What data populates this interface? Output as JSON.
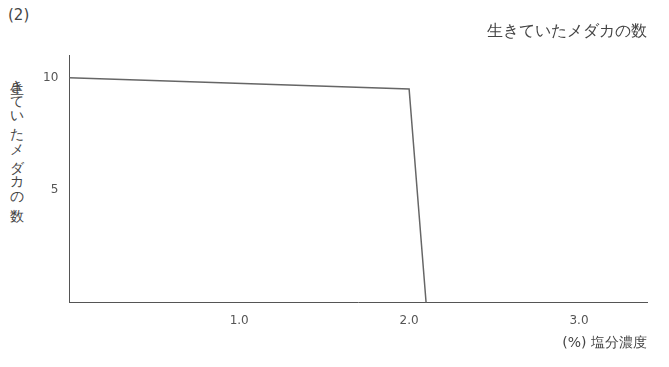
{
  "chart_data": {
    "type": "line",
    "title": "生きていたメダカの数",
    "annotation": "(2)",
    "x_label": "(%) 塩分濃度",
    "y_label": "生きていたメダカの数",
    "x": [
      0,
      2.0,
      2.1
    ],
    "values": [
      10,
      9.5,
      0
    ],
    "color": "#666666",
    "xlim": [
      0,
      3.4
    ],
    "xticks": [
      {
        "value": 1,
        "label": "1.0"
      },
      {
        "value": 2,
        "label": "2.0"
      },
      {
        "value": 3,
        "label": "3.0"
      }
    ],
    "ylim": [
      0,
      11
    ],
    "yticks": [
      5,
      10
    ],
    "grid": false
  }
}
